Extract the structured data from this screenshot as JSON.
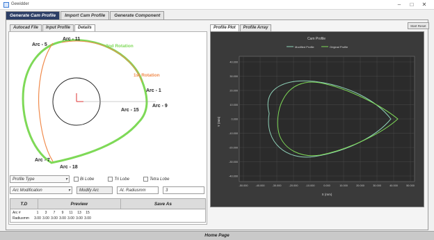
{
  "window": {
    "title": "Gewidder",
    "minimize": "–",
    "maximize": "□",
    "close": "✕"
  },
  "top_tabs": [
    "Generate Cam Profile",
    "Import Cam Profile",
    "Generate Component"
  ],
  "sub_tabs": [
    "Autocad File",
    "Input Profile",
    "Details"
  ],
  "right_tabs": [
    "Profile Plot",
    "Profile Array"
  ],
  "start_reset": "Start Reset",
  "cam_diagram": {
    "labels": {
      "arc5": "Arc - 5",
      "arc11": "Arc - 11",
      "second_rotation": "2nd Rotation",
      "first_rotation": "1st Rotation",
      "arc1": "Arc - 1",
      "arc15": "Arc - 15",
      "arc9": "Arc - 9",
      "arc7": "Arc - 7",
      "arc18": "Arc - 18"
    }
  },
  "controls": {
    "profile_type": "Profile Type",
    "bilobe": "Bi Lobe",
    "trilobe": "Tri Lobe",
    "tetralobe": "Tetra Lobe",
    "arc_modification": "Arc Modification",
    "modify_arc": "Modify Arc",
    "radius_label": "At. Radiusmm",
    "radius_value": "3"
  },
  "grid": {
    "headers": [
      "T.D",
      "Preview",
      "Save As"
    ],
    "rows": [
      {
        "label": "Arc #",
        "values": [
          "1",
          "3",
          "7",
          "9",
          "11",
          "13",
          "15"
        ]
      },
      {
        "label": "Radiusmm",
        "values": [
          "3.00",
          "3.00",
          "3.00",
          "3.00",
          "3.00",
          "3.00",
          "3.00"
        ]
      }
    ]
  },
  "plot": {
    "title": "Cam Profile",
    "legend": [
      "Modified Profile",
      "Original Profile"
    ],
    "ylabel": "Y (mm)",
    "xlabel": "X (mm)",
    "yticks": [
      "40.000",
      "30.000",
      "20.000",
      "10.000",
      "0.000",
      "-10.000",
      "-20.000",
      "-30.000",
      "-40.000"
    ],
    "xticks": [
      "-50.000",
      "-40.000",
      "-30.000",
      "-20.000",
      "-10.000",
      "0.000",
      "10.000",
      "20.000",
      "30.000",
      "40.000",
      "50.000"
    ]
  },
  "colors": {
    "modified": "#8fd1b8",
    "original": "#7ed957",
    "cam_outer": "#7ed957",
    "cam_inner": "#f08a4b",
    "tab_active": "#2c3e66"
  },
  "statusbar": "Home Page"
}
